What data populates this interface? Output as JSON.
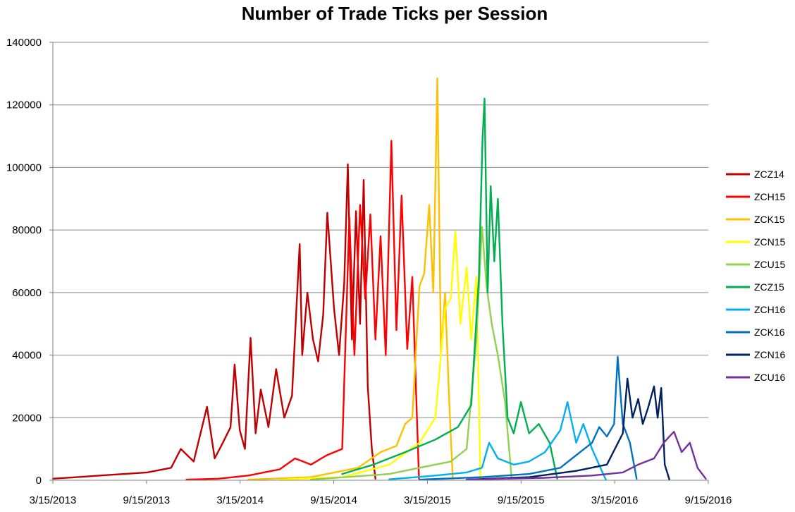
{
  "chart_data": {
    "type": "line",
    "title": "Number of Trade Ticks per Session",
    "xlabel": "",
    "ylabel": "",
    "x_ticks": [
      "3/15/2013",
      "9/15/2013",
      "3/15/2014",
      "9/15/2014",
      "3/15/2015",
      "9/15/2015",
      "3/15/2016",
      "9/15/2016"
    ],
    "xlim": [
      "2013-03-15",
      "2016-09-15"
    ],
    "y_ticks": [
      "0",
      "20000",
      "40000",
      "60000",
      "80000",
      "100000",
      "120000",
      "140000"
    ],
    "ylim": [
      0,
      140000
    ],
    "grid": "horizontal",
    "legend_position": "right",
    "series": [
      {
        "name": "ZCZ14",
        "color": "#C00000",
        "points": [
          [
            "2013-03-15",
            500
          ],
          [
            "2013-05-01",
            1000
          ],
          [
            "2013-06-15",
            1500
          ],
          [
            "2013-08-01",
            2000
          ],
          [
            "2013-09-15",
            2500
          ],
          [
            "2013-11-01",
            4000
          ],
          [
            "2013-11-20",
            10000
          ],
          [
            "2013-12-15",
            6000
          ],
          [
            "2014-01-10",
            23500
          ],
          [
            "2014-01-25",
            7000
          ],
          [
            "2014-02-10",
            12000
          ],
          [
            "2014-02-25",
            17000
          ],
          [
            "2014-03-05",
            37000
          ],
          [
            "2014-03-15",
            16000
          ],
          [
            "2014-03-25",
            10000
          ],
          [
            "2014-04-05",
            45500
          ],
          [
            "2014-04-15",
            15000
          ],
          [
            "2014-04-25",
            29000
          ],
          [
            "2014-05-10",
            17000
          ],
          [
            "2014-05-25",
            35500
          ],
          [
            "2014-06-10",
            20000
          ],
          [
            "2014-06-25",
            27000
          ],
          [
            "2014-07-10",
            75500
          ],
          [
            "2014-07-15",
            40000
          ],
          [
            "2014-07-25",
            60000
          ],
          [
            "2014-08-05",
            45000
          ],
          [
            "2014-08-15",
            38000
          ],
          [
            "2014-08-25",
            53000
          ],
          [
            "2014-09-02",
            85500
          ],
          [
            "2014-09-15",
            55000
          ],
          [
            "2014-09-25",
            40000
          ],
          [
            "2014-10-05",
            63000
          ],
          [
            "2014-10-12",
            101000
          ],
          [
            "2014-10-20",
            45000
          ],
          [
            "2014-10-28",
            86000
          ],
          [
            "2014-11-05",
            50000
          ],
          [
            "2014-11-12",
            96000
          ],
          [
            "2014-11-20",
            30000
          ],
          [
            "2014-11-28",
            10000
          ],
          [
            "2014-12-05",
            500
          ]
        ]
      },
      {
        "name": "ZCH15",
        "color": "#FF0000",
        "points": [
          [
            "2013-12-01",
            200
          ],
          [
            "2014-02-01",
            500
          ],
          [
            "2014-04-01",
            1500
          ],
          [
            "2014-06-01",
            3500
          ],
          [
            "2014-07-01",
            7000
          ],
          [
            "2014-08-01",
            5000
          ],
          [
            "2014-09-01",
            8000
          ],
          [
            "2014-10-01",
            10000
          ],
          [
            "2014-10-15",
            84000
          ],
          [
            "2014-10-25",
            40000
          ],
          [
            "2014-11-05",
            88000
          ],
          [
            "2014-11-15",
            58000
          ],
          [
            "2014-11-25",
            85000
          ],
          [
            "2014-12-05",
            45000
          ],
          [
            "2014-12-15",
            78000
          ],
          [
            "2014-12-25",
            40000
          ],
          [
            "2015-01-05",
            108500
          ],
          [
            "2015-01-15",
            48000
          ],
          [
            "2015-01-25",
            91000
          ],
          [
            "2015-02-05",
            42000
          ],
          [
            "2015-02-15",
            65000
          ],
          [
            "2015-02-22",
            30000
          ],
          [
            "2015-02-28",
            500
          ]
        ]
      },
      {
        "name": "ZCK15",
        "color": "#FFC000",
        "points": [
          [
            "2014-04-01",
            200
          ],
          [
            "2014-08-01",
            1000
          ],
          [
            "2014-11-01",
            4000
          ],
          [
            "2014-12-15",
            9000
          ],
          [
            "2015-01-15",
            11000
          ],
          [
            "2015-02-01",
            18000
          ],
          [
            "2015-02-15",
            20000
          ],
          [
            "2015-03-01",
            62000
          ],
          [
            "2015-03-10",
            66000
          ],
          [
            "2015-03-20",
            88000
          ],
          [
            "2015-03-28",
            60000
          ],
          [
            "2015-04-05",
            128500
          ],
          [
            "2015-04-12",
            40000
          ],
          [
            "2015-04-20",
            60000
          ],
          [
            "2015-04-28",
            25000
          ],
          [
            "2015-05-05",
            500
          ]
        ]
      },
      {
        "name": "ZCN15",
        "color": "#FFFF00",
        "points": [
          [
            "2014-06-01",
            200
          ],
          [
            "2014-10-01",
            1000
          ],
          [
            "2015-01-01",
            5000
          ],
          [
            "2015-03-01",
            12000
          ],
          [
            "2015-04-01",
            20000
          ],
          [
            "2015-04-20",
            55000
          ],
          [
            "2015-05-01",
            58000
          ],
          [
            "2015-05-10",
            79500
          ],
          [
            "2015-05-20",
            50000
          ],
          [
            "2015-06-01",
            68000
          ],
          [
            "2015-06-10",
            45000
          ],
          [
            "2015-06-20",
            65000
          ],
          [
            "2015-06-28",
            1000
          ]
        ]
      },
      {
        "name": "ZCU15",
        "color": "#92D050",
        "points": [
          [
            "2014-08-01",
            200
          ],
          [
            "2015-01-01",
            2000
          ],
          [
            "2015-03-01",
            4000
          ],
          [
            "2015-05-01",
            6000
          ],
          [
            "2015-06-01",
            10000
          ],
          [
            "2015-06-20",
            45000
          ],
          [
            "2015-07-01",
            81000
          ],
          [
            "2015-07-10",
            62000
          ],
          [
            "2015-07-20",
            50000
          ],
          [
            "2015-08-01",
            40000
          ],
          [
            "2015-08-15",
            25000
          ],
          [
            "2015-08-28",
            500
          ]
        ]
      },
      {
        "name": "ZCZ15",
        "color": "#00B050",
        "points": [
          [
            "2014-10-01",
            2000
          ],
          [
            "2014-12-01",
            5000
          ],
          [
            "2015-02-01",
            9000
          ],
          [
            "2015-04-01",
            13000
          ],
          [
            "2015-05-15",
            17000
          ],
          [
            "2015-06-10",
            24000
          ],
          [
            "2015-06-25",
            65000
          ],
          [
            "2015-07-02",
            109000
          ],
          [
            "2015-07-06",
            122000
          ],
          [
            "2015-07-12",
            60000
          ],
          [
            "2015-07-18",
            94000
          ],
          [
            "2015-07-25",
            70000
          ],
          [
            "2015-08-01",
            90000
          ],
          [
            "2015-08-10",
            50000
          ],
          [
            "2015-08-20",
            20000
          ],
          [
            "2015-09-01",
            15000
          ],
          [
            "2015-09-15",
            25000
          ],
          [
            "2015-10-01",
            15000
          ],
          [
            "2015-10-20",
            18000
          ],
          [
            "2015-11-10",
            12000
          ],
          [
            "2015-11-25",
            500
          ]
        ]
      },
      {
        "name": "ZCH16",
        "color": "#00B0F0",
        "points": [
          [
            "2015-01-01",
            300
          ],
          [
            "2015-04-01",
            1500
          ],
          [
            "2015-06-01",
            2500
          ],
          [
            "2015-07-01",
            4000
          ],
          [
            "2015-07-15",
            12000
          ],
          [
            "2015-08-01",
            7000
          ],
          [
            "2015-09-01",
            5000
          ],
          [
            "2015-10-01",
            6000
          ],
          [
            "2015-11-01",
            9000
          ],
          [
            "2015-12-01",
            16000
          ],
          [
            "2015-12-15",
            25000
          ],
          [
            "2016-01-01",
            12000
          ],
          [
            "2016-01-15",
            18000
          ],
          [
            "2016-02-01",
            10000
          ],
          [
            "2016-02-20",
            3000
          ],
          [
            "2016-02-28",
            200
          ]
        ]
      },
      {
        "name": "ZCK16",
        "color": "#0070C0",
        "points": [
          [
            "2015-03-01",
            200
          ],
          [
            "2015-07-01",
            1000
          ],
          [
            "2015-10-01",
            2000
          ],
          [
            "2015-12-01",
            4000
          ],
          [
            "2016-01-01",
            8000
          ],
          [
            "2016-02-01",
            12000
          ],
          [
            "2016-02-15",
            17000
          ],
          [
            "2016-03-01",
            14000
          ],
          [
            "2016-03-15",
            18000
          ],
          [
            "2016-03-22",
            39500
          ],
          [
            "2016-04-01",
            18000
          ],
          [
            "2016-04-15",
            12000
          ],
          [
            "2016-04-28",
            500
          ]
        ]
      },
      {
        "name": "ZCN16",
        "color": "#002060",
        "points": [
          [
            "2015-06-01",
            200
          ],
          [
            "2015-10-01",
            1000
          ],
          [
            "2016-01-01",
            3000
          ],
          [
            "2016-03-01",
            5000
          ],
          [
            "2016-04-01",
            15000
          ],
          [
            "2016-04-10",
            32500
          ],
          [
            "2016-04-20",
            20000
          ],
          [
            "2016-05-01",
            26000
          ],
          [
            "2016-05-10",
            18000
          ],
          [
            "2016-05-20",
            23000
          ],
          [
            "2016-06-01",
            30000
          ],
          [
            "2016-06-08",
            20000
          ],
          [
            "2016-06-15",
            29500
          ],
          [
            "2016-06-22",
            5000
          ],
          [
            "2016-07-01",
            200
          ]
        ]
      },
      {
        "name": "ZCU16",
        "color": "#7030A0",
        "points": [
          [
            "2015-06-01",
            200
          ],
          [
            "2015-11-01",
            800
          ],
          [
            "2016-02-01",
            1500
          ],
          [
            "2016-04-01",
            2500
          ],
          [
            "2016-05-01",
            5000
          ],
          [
            "2016-06-01",
            7000
          ],
          [
            "2016-06-20",
            12000
          ],
          [
            "2016-07-01",
            14000
          ],
          [
            "2016-07-10",
            15500
          ],
          [
            "2016-07-25",
            9000
          ],
          [
            "2016-08-10",
            12000
          ],
          [
            "2016-08-25",
            4000
          ],
          [
            "2016-09-10",
            500
          ]
        ]
      }
    ]
  }
}
